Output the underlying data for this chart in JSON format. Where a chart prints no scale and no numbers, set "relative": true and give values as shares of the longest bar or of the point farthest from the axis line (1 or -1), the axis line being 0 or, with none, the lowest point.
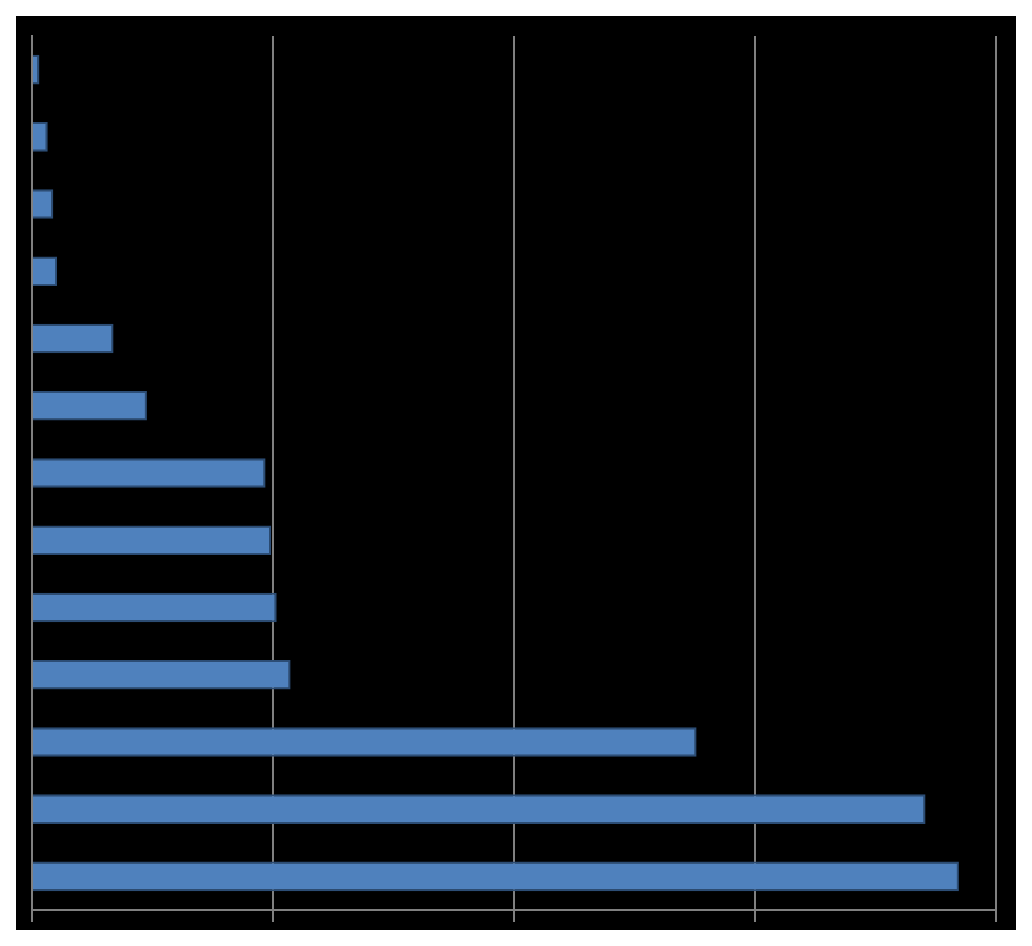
{
  "chart_data": {
    "type": "bar",
    "orientation": "horizontal",
    "relative": true,
    "grid": "x",
    "legend": false,
    "categories": [
      null,
      null,
      null,
      null,
      null,
      null,
      null,
      null,
      null,
      null,
      null,
      null,
      null
    ],
    "series": [
      {
        "color": "#4f81bd",
        "values": [
          0.008,
          0.017,
          0.023,
          0.027,
          0.088,
          0.124,
          0.252,
          0.258,
          0.264,
          0.279,
          0.717,
          0.964,
          1
        ]
      }
    ]
  }
}
